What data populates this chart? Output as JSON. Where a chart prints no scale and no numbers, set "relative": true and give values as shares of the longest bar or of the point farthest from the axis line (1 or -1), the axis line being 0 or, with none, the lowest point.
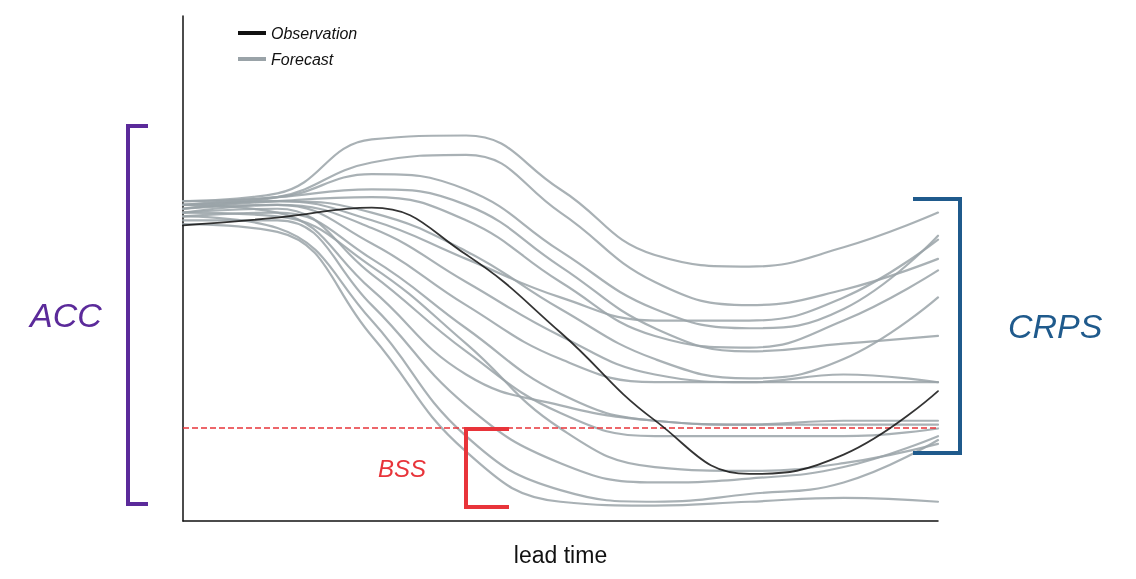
{
  "chart_data": {
    "type": "line",
    "relative": true,
    "xlabel": "lead time",
    "legend": "top left",
    "grid": false,
    "marker": "none",
    "categories": [
      null,
      null,
      null,
      null,
      null,
      null,
      null,
      null,
      null
    ],
    "annotations": [
      "ACC",
      "CRPS",
      "BSS"
    ],
    "ref_lines": [
      {
        "axis": "y",
        "value": 0.243,
        "color": "#e8343a",
        "line_style": "dashed"
      }
    ],
    "series": [
      {
        "name": "Forecast",
        "color": "#9aa3a8",
        "values": [
          0.81,
          0.82,
          0.72,
          0.56,
          0.42,
          0.36,
          0.36,
          0.36,
          0.36
        ]
      },
      {
        "color": "#9aa3a8",
        "values": [
          0.83,
          0.85,
          0.99,
          1.0,
          0.86,
          0.69,
          0.66,
          0.71,
          0.8
        ]
      },
      {
        "color": "#9aa3a8",
        "values": [
          0.82,
          0.84,
          0.93,
          0.95,
          0.8,
          0.62,
          0.56,
          0.6,
          0.68
        ]
      },
      {
        "color": "#9aa3a8",
        "values": [
          0.83,
          0.84,
          0.9,
          0.86,
          0.7,
          0.55,
          0.5,
          0.55,
          0.74
        ]
      },
      {
        "color": "#9aa3a8",
        "values": [
          0.81,
          0.83,
          0.84,
          0.78,
          0.62,
          0.48,
          0.45,
          0.52,
          0.65
        ]
      },
      {
        "color": "#9aa3a8",
        "values": [
          0.82,
          0.83,
          0.8,
          0.7,
          0.55,
          0.42,
          0.37,
          0.42,
          0.58
        ]
      },
      {
        "color": "#9aa3a8",
        "values": [
          0.8,
          0.82,
          0.76,
          0.62,
          0.48,
          0.38,
          0.36,
          0.38,
          0.36
        ]
      },
      {
        "color": "#9aa3a8",
        "values": [
          0.79,
          0.8,
          0.68,
          0.5,
          0.33,
          0.26,
          0.25,
          0.25,
          0.25
        ]
      },
      {
        "color": "#9aa3a8",
        "values": [
          0.8,
          0.81,
          0.64,
          0.44,
          0.28,
          0.22,
          0.22,
          0.22,
          0.24
        ]
      },
      {
        "color": "#9aa3a8",
        "values": [
          0.82,
          0.8,
          0.6,
          0.38,
          0.3,
          0.26,
          0.25,
          0.26,
          0.26
        ]
      },
      {
        "color": "#9aa3a8",
        "values": [
          0.78,
          0.78,
          0.56,
          0.3,
          0.15,
          0.1,
          0.11,
          0.14,
          0.22
        ]
      },
      {
        "color": "#9aa3a8",
        "values": [
          0.79,
          0.76,
          0.52,
          0.22,
          0.08,
          0.05,
          0.07,
          0.1,
          0.21
        ]
      },
      {
        "color": "#9aa3a8",
        "values": [
          0.77,
          0.75,
          0.48,
          0.18,
          0.05,
          0.04,
          0.05,
          0.06,
          0.05
        ]
      },
      {
        "color": "#9aa3a8",
        "values": [
          0.8,
          0.79,
          0.66,
          0.46,
          0.24,
          0.14,
          0.13,
          0.15,
          0.2
        ]
      },
      {
        "color": "#9aa3a8",
        "values": [
          0.81,
          0.83,
          0.78,
          0.68,
          0.58,
          0.52,
          0.52,
          0.58,
          0.73
        ]
      },
      {
        "color": "#9aa3a8",
        "values": [
          0.82,
          0.84,
          0.86,
          0.82,
          0.66,
          0.5,
          0.44,
          0.46,
          0.48
        ]
      },
      {
        "name": "Observation",
        "color": "#111111",
        "values": [
          0.767,
          0.787,
          0.813,
          0.691,
          0.489,
          0.261,
          0.122,
          0.172,
          0.337
        ]
      }
    ]
  }
}
